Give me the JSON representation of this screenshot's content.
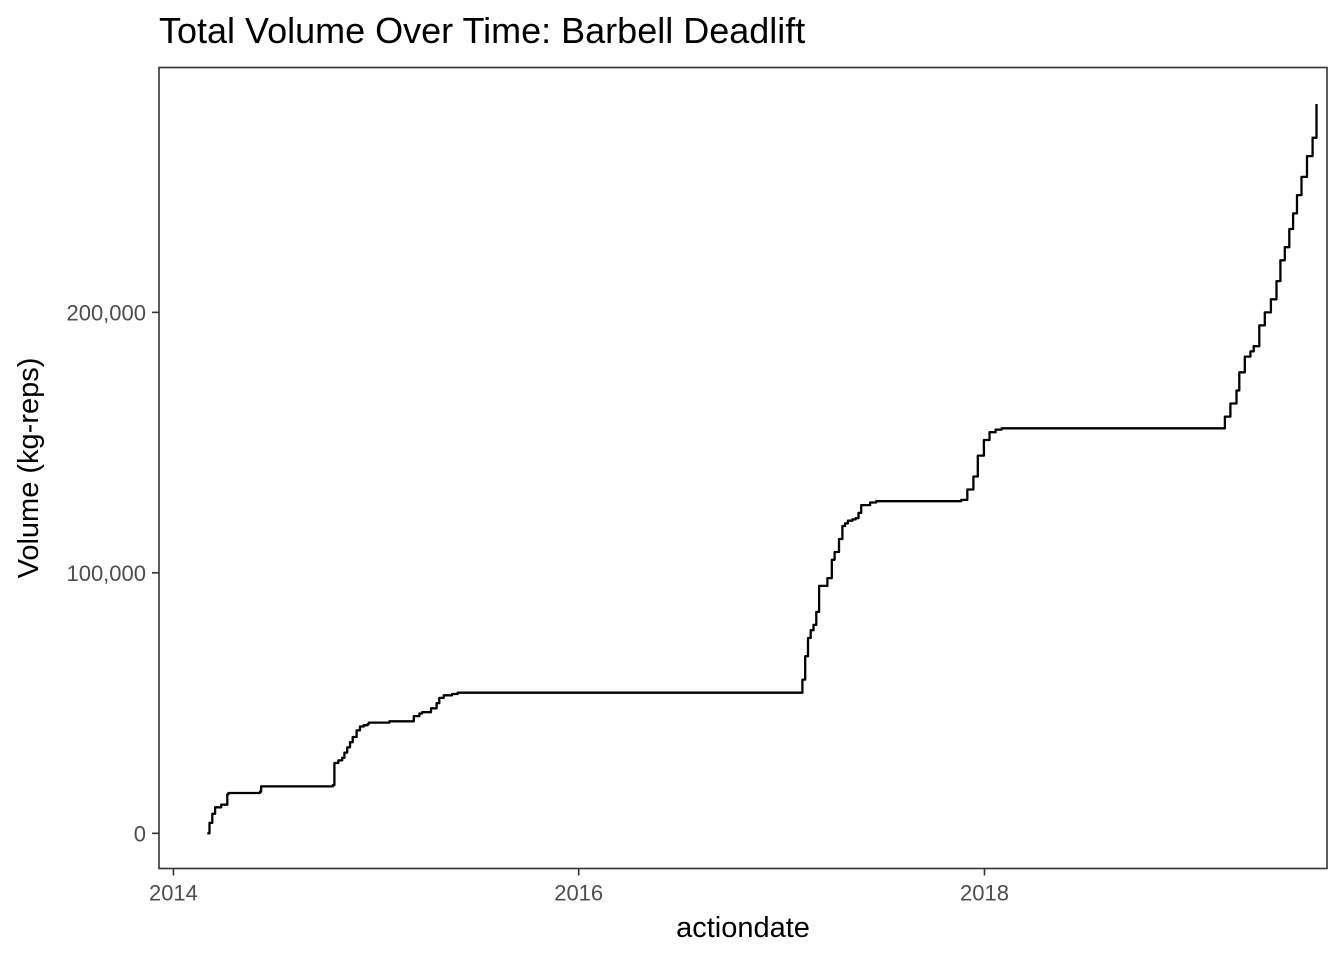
{
  "chart_data": {
    "type": "line",
    "title": "Total Volume Over Time: Barbell Deadlift",
    "xlabel": "actiondate",
    "ylabel": "Volume (kg-reps)",
    "x_type": "date",
    "xlim": [
      "2013-12-06",
      "2019-09-10"
    ],
    "ylim": [
      -13500,
      294000
    ],
    "x_ticks": [
      {
        "value": "2014-01-01",
        "label": "2014"
      },
      {
        "value": "2016-01-01",
        "label": "2016"
      },
      {
        "value": "2018-01-01",
        "label": "2018"
      }
    ],
    "y_ticks": [
      {
        "value": 0,
        "label": "0"
      },
      {
        "value": 100000,
        "label": "100,000"
      },
      {
        "value": 200000,
        "label": "200,000"
      }
    ],
    "grid": false,
    "legend": "none",
    "line_color": "#000000",
    "series": [
      {
        "name": "",
        "x": [
          "2014-03-03",
          "2014-03-07",
          "2014-03-12",
          "2014-03-17",
          "2014-03-28",
          "2014-04-08",
          "2014-04-10",
          "2014-06-06",
          "2014-06-08",
          "2014-10-15",
          "2014-10-18",
          "2014-10-25",
          "2014-11-01",
          "2014-11-05",
          "2014-11-10",
          "2014-11-15",
          "2014-11-20",
          "2014-11-27",
          "2014-12-03",
          "2014-12-10",
          "2014-12-17",
          "2014-12-19",
          "2015-01-25",
          "2015-03-10",
          "2015-03-20",
          "2015-03-25",
          "2015-04-10",
          "2015-04-20",
          "2015-04-25",
          "2015-05-03",
          "2015-05-18",
          "2015-05-28",
          "2015-06-01",
          "2017-02-02",
          "2017-02-07",
          "2017-02-12",
          "2017-02-17",
          "2017-02-22",
          "2017-02-27",
          "2017-03-04",
          "2017-03-09",
          "2017-03-24",
          "2017-04-01",
          "2017-04-06",
          "2017-04-14",
          "2017-04-20",
          "2017-04-25",
          "2017-04-30",
          "2017-05-08",
          "2017-05-14",
          "2017-05-19",
          "2017-05-24",
          "2017-06-09",
          "2017-06-14",
          "2017-06-20",
          "2017-06-26",
          "2017-07-01",
          "2017-11-20",
          "2017-12-01",
          "2017-12-12",
          "2017-12-20",
          "2017-12-31",
          "2018-01-10",
          "2018-01-21",
          "2018-02-01",
          "2018-02-10",
          "2019-03-01",
          "2019-03-10",
          "2019-03-20",
          "2019-03-31",
          "2019-04-05",
          "2019-04-15",
          "2019-04-25",
          "2019-05-01",
          "2019-05-11",
          "2019-05-21",
          "2019-06-01",
          "2019-06-11",
          "2019-06-18",
          "2019-06-26",
          "2019-07-04",
          "2019-07-11",
          "2019-07-18",
          "2019-07-26",
          "2019-08-05",
          "2019-08-15",
          "2019-08-22"
        ],
        "values": [
          0,
          4000,
          7500,
          10000,
          11000,
          15000,
          15500,
          16000,
          18000,
          18500,
          27000,
          28000,
          29000,
          31000,
          33000,
          35000,
          37000,
          39500,
          41000,
          41500,
          42000,
          42500,
          43000,
          45000,
          46000,
          46500,
          48000,
          50000,
          52000,
          53000,
          53500,
          54000,
          54000,
          54000,
          59000,
          68000,
          75000,
          78000,
          80000,
          85000,
          95000,
          98000,
          105000,
          108000,
          113000,
          118000,
          119000,
          120000,
          120500,
          121000,
          123000,
          126000,
          127000,
          127000,
          127500,
          127500,
          127500,
          128000,
          132000,
          137000,
          145000,
          151000,
          154000,
          155000,
          155500,
          155500,
          155500,
          160000,
          165000,
          170000,
          177000,
          183000,
          185000,
          187000,
          195000,
          200000,
          205000,
          212000,
          220000,
          225000,
          232000,
          238000,
          245000,
          252000,
          260000,
          267000,
          280000
        ]
      }
    ]
  }
}
